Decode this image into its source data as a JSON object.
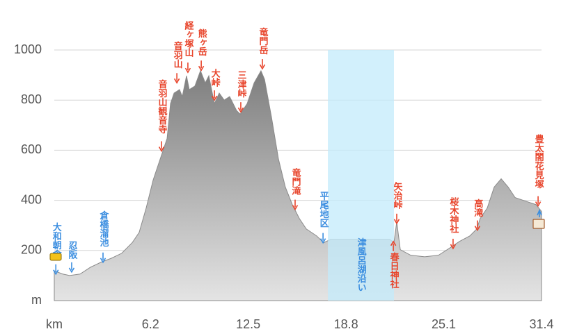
{
  "chart_data": {
    "type": "area",
    "x": [
      0,
      0.54,
      0.99,
      1.66,
      2.33,
      3.01,
      3.68,
      4.35,
      5.02,
      5.47,
      5.92,
      6.37,
      6.82,
      7.27,
      7.49,
      7.72,
      8.07,
      8.25,
      8.52,
      8.7,
      9.06,
      9.42,
      9.73,
      9.96,
      10.32,
      10.63,
      10.95,
      11.3,
      11.75,
      11.98,
      12.43,
      12.88,
      13.32,
      13.55,
      14.0,
      14.45,
      14.89,
      15.34,
      15.79,
      16.24,
      16.91,
      17.36,
      17.81,
      18.93,
      20.28,
      21.62,
      21.89,
      22.07,
      22.3,
      22.97,
      23.87,
      24.76,
      25.44,
      26.11,
      26.78,
      27.23,
      27.45,
      27.9,
      28.35,
      28.8,
      29.25,
      29.7,
      30.37,
      31.04,
      31.4
    ],
    "values": [
      119,
      106,
      100,
      106,
      133,
      153,
      169,
      189,
      231,
      272,
      369,
      481,
      564,
      647,
      786,
      828,
      842,
      814,
      897,
      842,
      856,
      917,
      869,
      897,
      786,
      828,
      800,
      814,
      758,
      744,
      786,
      869,
      917,
      883,
      731,
      564,
      453,
      383,
      328,
      286,
      258,
      231,
      244,
      244,
      244,
      244,
      231,
      314,
      203,
      181,
      175,
      181,
      208,
      236,
      258,
      286,
      328,
      369,
      453,
      486,
      453,
      411,
      397,
      383,
      356
    ],
    "color": "#8c8c8c",
    "xlim": [
      0,
      31.4
    ],
    "xticks": [
      {
        "value": 0,
        "label": "km"
      },
      6.2,
      12.5,
      18.8,
      25.1,
      31.4
    ],
    "ylim": [
      0,
      1000
    ],
    "yticks": [
      {
        "value": 0,
        "label": "m"
      },
      200,
      400,
      600,
      800,
      1000
    ],
    "grid": true,
    "highlight": {
      "x": [
        17.63,
        21.89
      ],
      "color": "#c3ebfb"
    },
    "annotations": [
      {
        "text": "大和朝倉",
        "x": 0.1,
        "y": 106,
        "color": "#3b8ee0",
        "arrow": "down"
      },
      {
        "text": "忍阪",
        "x": 1.12,
        "y": 114,
        "color": "#3b8ee0",
        "arrow": "down"
      },
      {
        "text": "倉橋溜池",
        "x": 3.14,
        "y": 153,
        "color": "#3b8ee0",
        "arrow": "down"
      },
      {
        "text": "音羽山観音寺",
        "x": 6.91,
        "y": 597,
        "color": "#e8452c",
        "arrow": "down"
      },
      {
        "text": "音羽山",
        "x": 7.9,
        "y": 869,
        "color": "#e8452c",
        "arrow": "down"
      },
      {
        "text": "経ヶ塚山",
        "x": 8.61,
        "y": 911,
        "color": "#e8452c",
        "arrow": "down"
      },
      {
        "text": "熊ヶ岳",
        "x": 9.47,
        "y": 919,
        "color": "#e8452c",
        "arrow": "down"
      },
      {
        "text": "大峠",
        "x": 10.32,
        "y": 800,
        "color": "#e8452c",
        "arrow": "down"
      },
      {
        "text": "三津峠",
        "x": 12.02,
        "y": 753,
        "color": "#e8452c",
        "arrow": "down"
      },
      {
        "text": "竜門岳",
        "x": 13.41,
        "y": 925,
        "color": "#e8452c",
        "arrow": "down"
      },
      {
        "text": "竜門滝",
        "x": 15.52,
        "y": 364,
        "color": "#e8452c",
        "arrow": "down"
      },
      {
        "text": "平尾地区",
        "x": 17.32,
        "y": 231,
        "color": "#3b8ee0",
        "arrow": "down"
      },
      {
        "text": "津風呂湖沿い",
        "x": 19.74,
        "y": 250,
        "color": "#3b8ee0",
        "arrow": "none"
      },
      {
        "text": "矢治峠",
        "x": 22.07,
        "y": 308,
        "color": "#e8452c",
        "arrow": "down"
      },
      {
        "text": "春日神社",
        "x": 21.85,
        "y": 236,
        "color": "#e8452c",
        "arrow": "up"
      },
      {
        "text": "桜木神社",
        "x": 25.7,
        "y": 208,
        "color": "#e8452c",
        "arrow": "down"
      },
      {
        "text": "高滝",
        "x": 27.27,
        "y": 281,
        "color": "#e8452c",
        "arrow": "down"
      },
      {
        "text": "豊太閤花見塚",
        "x": 31.18,
        "y": 378,
        "color": "#e8452c",
        "arrow": "down"
      }
    ]
  }
}
